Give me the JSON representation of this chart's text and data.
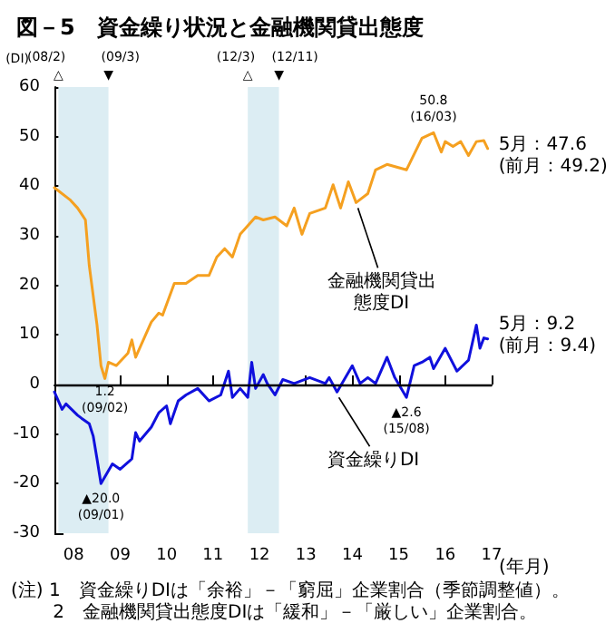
{
  "chart_data": {
    "type": "line",
    "title": "図－5　資金繰り状況と金融機関貸出態度",
    "ylabel": "(DI)",
    "xlabel": "(年月)",
    "xlim": [
      "2008-01",
      "2017-06"
    ],
    "xticks": [
      {
        "value": "2008-06",
        "label": "08"
      },
      {
        "value": "2009-06",
        "label": "09"
      },
      {
        "value": "2010-06",
        "label": "10"
      },
      {
        "value": "2011-06",
        "label": "11"
      },
      {
        "value": "2012-06",
        "label": "12"
      },
      {
        "value": "2013-06",
        "label": "13"
      },
      {
        "value": "2014-06",
        "label": "14"
      },
      {
        "value": "2015-06",
        "label": "15"
      },
      {
        "value": "2016-06",
        "label": "16"
      },
      {
        "value": "2017-06",
        "label": "17"
      }
    ],
    "ylim": [
      -30,
      60
    ],
    "yticks": [
      -30,
      -20,
      -10,
      0,
      10,
      20,
      30,
      40,
      50,
      60
    ],
    "marker": "none",
    "line_style": "solid",
    "series": [
      {
        "color": "#f5a020",
        "x": [
          "2008-01",
          "2008-05",
          "2008-07",
          "2008-08",
          "2008-09",
          "2008-10",
          "2008-12",
          "2009-01",
          "2009-02",
          "2009-03",
          "2009-05",
          "2009-08",
          "2009-09",
          "2009-10",
          "2010-01",
          "2010-02",
          "2010-04",
          "2010-05",
          "2010-08",
          "2010-11",
          "2011-02",
          "2011-05",
          "2011-07",
          "2011-09",
          "2011-11",
          "2012-01",
          "2012-05",
          "2012-07",
          "2012-10",
          "2013-01",
          "2013-03",
          "2013-05",
          "2013-07",
          "2013-11",
          "2014-01",
          "2014-03",
          "2014-05",
          "2014-07",
          "2014-10",
          "2014-12",
          "2015-03",
          "2015-08",
          "2015-12",
          "2016-03",
          "2016-05",
          "2016-06",
          "2016-08",
          "2016-10",
          "2016-12",
          "2017-02",
          "2017-04",
          "2017-05"
        ],
        "values": [
          39.7,
          37.3,
          35.6,
          34.4,
          33.2,
          24,
          12,
          3.8,
          1.2,
          4.5,
          3.8,
          6.3,
          9,
          5.5,
          10.8,
          12.6,
          14.4,
          14,
          20.4,
          20.4,
          22,
          22,
          25.7,
          27.4,
          25.7,
          30.3,
          33.8,
          33.2,
          33.8,
          32,
          35.6,
          30.3,
          34.5,
          35.6,
          40.3,
          35.6,
          40.9,
          36.7,
          38.5,
          43.3,
          44.4,
          43.3,
          49.7,
          50.8,
          46.9,
          49,
          48,
          49,
          46.2,
          49,
          49.2,
          47.6
        ]
      },
      {
        "color": "#1010dd",
        "x": [
          "2008-01",
          "2008-02",
          "2008-03",
          "2008-04",
          "2008-07",
          "2008-08",
          "2008-10",
          "2008-11",
          "2008-12",
          "2009-01",
          "2009-03",
          "2009-04",
          "2009-06",
          "2009-09",
          "2009-10",
          "2009-11",
          "2010-02",
          "2010-04",
          "2010-06",
          "2010-07",
          "2010-09",
          "2010-11",
          "2011-02",
          "2011-05",
          "2011-08",
          "2011-10",
          "2011-11",
          "2012-01",
          "2012-03",
          "2012-04",
          "2012-05",
          "2012-07",
          "2012-08",
          "2012-10",
          "2012-12",
          "2013-03",
          "2013-07",
          "2013-11",
          "2013-12",
          "2014-02",
          "2014-06",
          "2014-08",
          "2014-10",
          "2014-12",
          "2015-03",
          "2015-05",
          "2015-08",
          "2015-10",
          "2015-12",
          "2016-02",
          "2016-03",
          "2016-06",
          "2016-09",
          "2016-12",
          "2017-02",
          "2017-03",
          "2017-04",
          "2017-05"
        ],
        "values": [
          -1.5,
          -3.3,
          -5,
          -3.9,
          -6.2,
          -6.8,
          -7.9,
          -10.4,
          -15,
          -20.0,
          -17.4,
          -16,
          -17.1,
          -15,
          -9.7,
          -11.4,
          -8.6,
          -5.7,
          -4.3,
          -7.9,
          -3.3,
          -2.1,
          -0.8,
          -3.3,
          -2.1,
          2.7,
          -2.6,
          -0.8,
          -2.6,
          4.5,
          -0.8,
          2,
          0.2,
          -2.1,
          1,
          0.2,
          1.4,
          0.2,
          1.4,
          -1.5,
          3.8,
          0.2,
          1.4,
          0.2,
          5.5,
          1.4,
          -2.6,
          3.8,
          4.5,
          5.5,
          3.2,
          7.3,
          2.7,
          4.9,
          12,
          7.3,
          9.4,
          9.2
        ]
      }
    ],
    "ref_lines": [
      {
        "axis": "y",
        "value": 0,
        "color": "#000000"
      }
    ],
    "bands": [
      {
        "axis": "x",
        "from": "2008-02",
        "to": "2009-03",
        "color": "#dcedf3"
      },
      {
        "axis": "x",
        "from": "2012-03",
        "to": "2012-11",
        "color": "#dcedf3"
      }
    ],
    "annotations": [
      {
        "text": "50.8\n(16/03)",
        "x": "2016-03",
        "y": 50.8
      },
      {
        "text": "5月：47.6\n(前月：49.2)",
        "x": "2017-05",
        "y": 47.6
      },
      {
        "text": "金融機関貸出態度DI",
        "x": "2014-07",
        "y": 36.7
      },
      {
        "text": "5月：9.2\n(前月：9.4)",
        "x": "2017-05",
        "y": 9.2
      },
      {
        "text": "1.2\n(09/02)",
        "x": "2009-02",
        "y": 1.2
      },
      {
        "text": "▲20.0\n(09/01)",
        "x": "2009-01",
        "y": -20.0
      },
      {
        "text": "▲2.6\n(15/08)",
        "x": "2015-08",
        "y": -2.6
      },
      {
        "text": "資金繰りDI",
        "x": "2014-02",
        "y": -1.5
      },
      {
        "text": "(08/2)\n△",
        "x": "2008-02",
        "y": 60
      },
      {
        "text": "(09/3)\n▼",
        "x": "2009-03",
        "y": 60
      },
      {
        "text": "(12/3)\n△",
        "x": "2012-03",
        "y": 60
      },
      {
        "text": "(12/11)\n▼",
        "x": "2012-11",
        "y": 60
      },
      "(注) 1　資金繰りDIは「余裕」－「窮屈」企業割合（季節調整値）。",
      "　　 2　金融機関貸出態度DIは「緩和」－「厳しい」企業割合。"
    ]
  }
}
